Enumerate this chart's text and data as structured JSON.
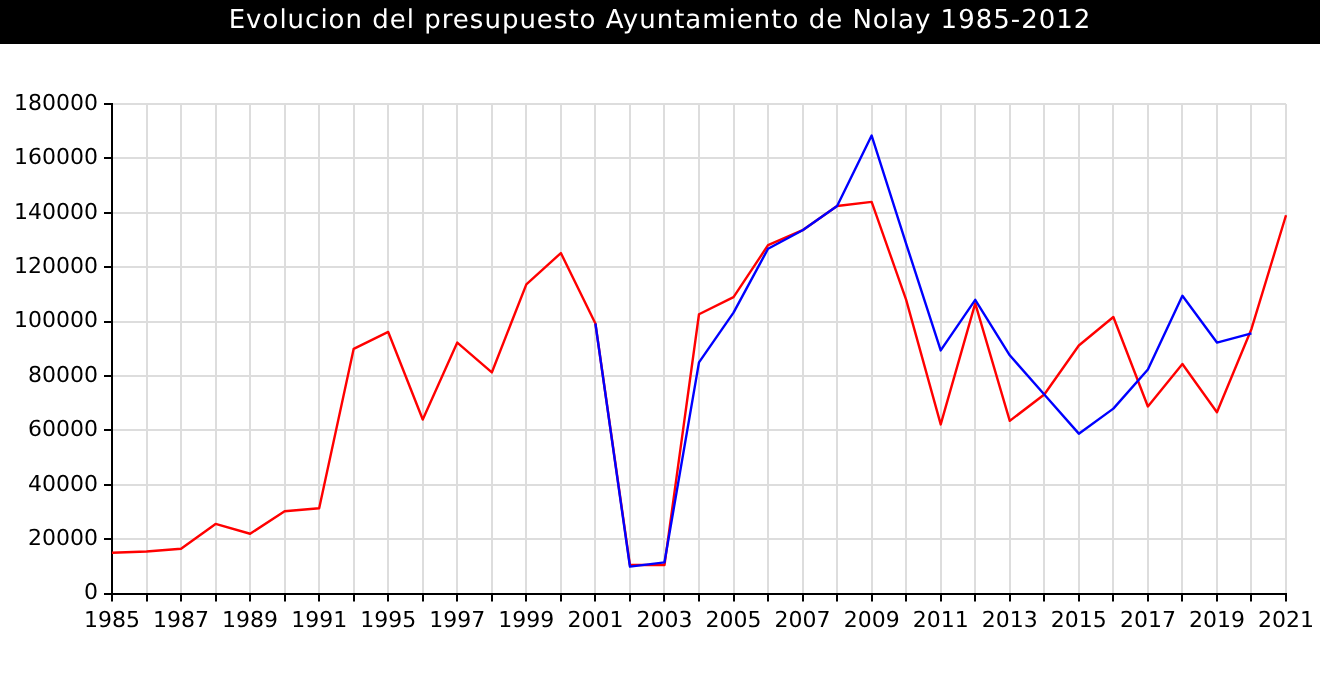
{
  "chart_data": {
    "type": "line",
    "title": "Evolucion del presupuesto Ayuntamiento de Nolay 1985-2012",
    "categories": [
      "1985",
      null,
      "1987",
      null,
      "1989",
      null,
      "1991",
      null,
      "1995",
      null,
      "1997",
      null,
      "1999",
      null,
      "2001",
      null,
      "2003",
      null,
      "2005",
      null,
      "2007",
      null,
      "2009",
      null,
      "2011",
      null,
      "2013",
      null,
      "2015",
      null,
      "2017",
      null,
      "2019",
      null,
      "2021"
    ],
    "series": [
      {
        "color": "#0000ff",
        "values": [
          null,
          null,
          null,
          null,
          null,
          null,
          null,
          null,
          null,
          null,
          null,
          null,
          null,
          null,
          99300,
          9900,
          11500,
          85000,
          103300,
          126800,
          133600,
          142500,
          168400,
          128600,
          89400,
          108000,
          87600,
          73200,
          58800,
          68000,
          82400,
          109500,
          92300,
          95700,
          null
        ]
      },
      {
        "color": "#ff0000",
        "values": [
          15000,
          15500,
          16500,
          25600,
          22000,
          30300,
          31400,
          90000,
          96200,
          64000,
          92300,
          81300,
          113700,
          125200,
          99300,
          10500,
          10500,
          102700,
          109000,
          128100,
          133600,
          142500,
          144000,
          108000,
          62200,
          106700,
          63500,
          73200,
          91200,
          101700,
          68800,
          84400,
          66700,
          97300,
          139100
        ]
      }
    ],
    "ylim": [
      0,
      180000
    ],
    "yticks": [
      0,
      20000,
      40000,
      60000,
      80000,
      100000,
      120000,
      140000,
      160000,
      180000
    ],
    "grid": true,
    "legend": false,
    "marker": "none",
    "line_style": "solid"
  }
}
